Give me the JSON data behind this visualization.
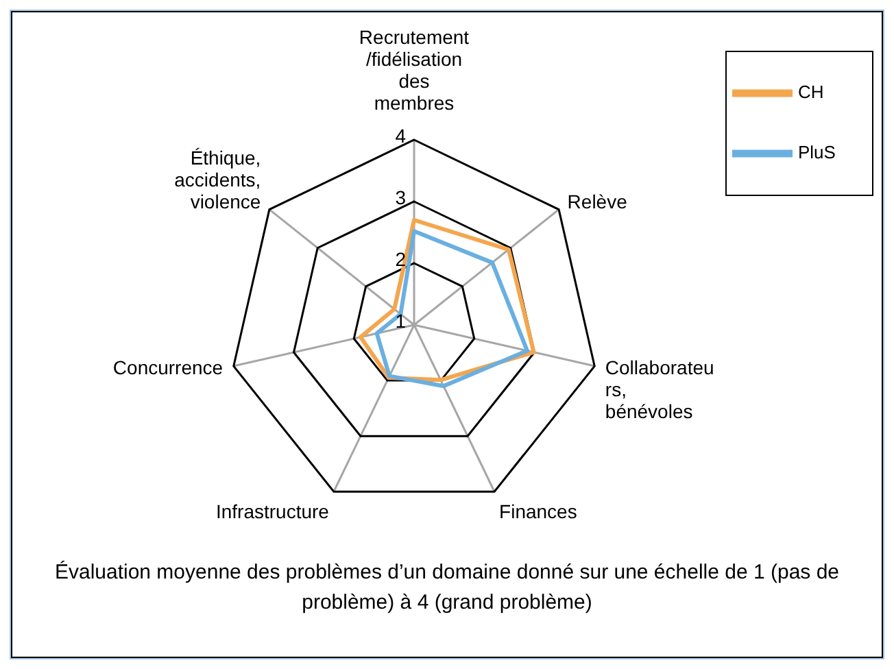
{
  "chart_data": {
    "type": "radar",
    "categories": [
      "Recrutement /fidélisation des membres",
      "Relève",
      "Collaborateurs, bénévoles",
      "Finances",
      "Infrastructure",
      "Concurrence",
      "Éthique, accidents, violence"
    ],
    "series": [
      {
        "name": "CH",
        "color": "#f4a64f",
        "values": [
          2.7,
          2.96,
          2.99,
          1.99,
          1.95,
          1.89,
          1.41
        ]
      },
      {
        "name": "PluS",
        "color": "#6aafe0",
        "values": [
          2.52,
          2.62,
          2.88,
          2.1,
          1.92,
          1.62,
          1.28
        ]
      }
    ],
    "ylim": [
      1,
      4
    ],
    "yticks": [
      1,
      2,
      3,
      4
    ],
    "grid": true,
    "legend": "top right",
    "marker": "none",
    "annotations": [
      "Évaluation moyenne des problèmes d’un domaine donné sur une échelle de 1 (pas de problème) à 4 (grand problème)"
    ]
  }
}
